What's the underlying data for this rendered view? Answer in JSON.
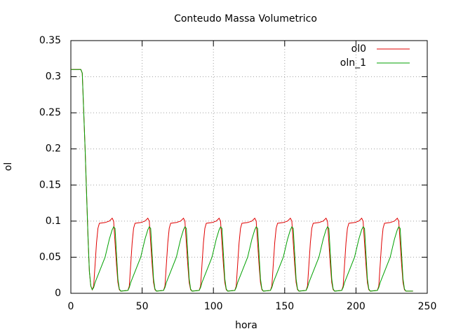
{
  "chart_data": {
    "type": "line",
    "title": "Conteudo Massa Volumetrico",
    "x_label": "hora",
    "y_label": "ol",
    "xlim": [
      0,
      250
    ],
    "xticks": [
      0,
      50,
      100,
      150,
      200,
      250
    ],
    "ylim": [
      0,
      0.35
    ],
    "yticks": [
      0,
      0.05,
      0.1,
      0.15,
      0.2,
      0.25,
      0.3,
      0.35
    ],
    "grid": true,
    "legend": "top-right",
    "x": [
      0,
      7,
      8,
      10,
      12,
      13,
      14,
      15,
      16,
      17,
      18,
      19,
      20,
      24,
      27,
      29,
      30,
      31,
      32,
      33,
      34,
      35,
      40,
      41,
      42,
      43,
      44,
      45,
      49,
      52,
      54,
      55,
      56,
      57,
      58,
      59,
      60,
      65,
      66,
      67,
      68,
      69,
      70,
      74,
      77,
      79,
      80,
      81,
      82,
      83,
      84,
      85,
      90,
      91,
      92,
      93,
      94,
      95,
      99,
      102,
      104,
      105,
      106,
      107,
      108,
      109,
      110,
      115,
      116,
      117,
      118,
      119,
      120,
      124,
      127,
      129,
      130,
      131,
      132,
      133,
      134,
      135,
      140,
      141,
      142,
      143,
      144,
      145,
      149,
      152,
      154,
      155,
      156,
      157,
      158,
      159,
      160,
      165,
      166,
      167,
      168,
      169,
      170,
      174,
      177,
      179,
      180,
      181,
      182,
      183,
      184,
      185,
      190,
      191,
      192,
      193,
      194,
      195,
      199,
      202,
      204,
      205,
      206,
      207,
      208,
      209,
      210,
      215,
      216,
      217,
      218,
      219,
      220,
      224,
      227,
      229,
      230,
      231,
      232,
      233,
      234,
      235,
      240
    ],
    "series": [
      {
        "name": "ol0",
        "color": "#e00000",
        "values": [
          0.31,
          0.31,
          0.305,
          0.2,
          0.08,
          0.03,
          0.01,
          0.005,
          0.01,
          0.04,
          0.07,
          0.09,
          0.097,
          0.098,
          0.1,
          0.104,
          0.1,
          0.07,
          0.04,
          0.015,
          0.005,
          0.003,
          0.004,
          0.01,
          0.04,
          0.07,
          0.09,
          0.097,
          0.098,
          0.1,
          0.104,
          0.1,
          0.07,
          0.04,
          0.015,
          0.005,
          0.003,
          0.004,
          0.01,
          0.04,
          0.07,
          0.09,
          0.097,
          0.098,
          0.1,
          0.104,
          0.1,
          0.07,
          0.04,
          0.015,
          0.005,
          0.003,
          0.004,
          0.01,
          0.04,
          0.07,
          0.09,
          0.097,
          0.098,
          0.1,
          0.104,
          0.1,
          0.07,
          0.04,
          0.015,
          0.005,
          0.003,
          0.004,
          0.01,
          0.04,
          0.07,
          0.09,
          0.097,
          0.098,
          0.1,
          0.104,
          0.1,
          0.07,
          0.04,
          0.015,
          0.005,
          0.003,
          0.004,
          0.01,
          0.04,
          0.07,
          0.09,
          0.097,
          0.098,
          0.1,
          0.104,
          0.1,
          0.07,
          0.04,
          0.015,
          0.005,
          0.003,
          0.004,
          0.01,
          0.04,
          0.07,
          0.09,
          0.097,
          0.098,
          0.1,
          0.104,
          0.1,
          0.07,
          0.04,
          0.015,
          0.005,
          0.003,
          0.004,
          0.01,
          0.04,
          0.07,
          0.09,
          0.097,
          0.098,
          0.1,
          0.104,
          0.1,
          0.07,
          0.04,
          0.015,
          0.005,
          0.003,
          0.004,
          0.01,
          0.04,
          0.07,
          0.09,
          0.097,
          0.098,
          0.1,
          0.104,
          0.1,
          0.07,
          0.04,
          0.015,
          0.005,
          0.003,
          0.003
        ]
      },
      {
        "name": "oln_1",
        "color": "#00a000",
        "values": [
          0.31,
          0.31,
          0.305,
          0.2,
          0.08,
          0.03,
          0.01,
          0.005,
          0.008,
          0.015,
          0.02,
          0.025,
          0.03,
          0.05,
          0.075,
          0.088,
          0.092,
          0.09,
          0.055,
          0.02,
          0.006,
          0.003,
          0.004,
          0.008,
          0.015,
          0.02,
          0.025,
          0.03,
          0.05,
          0.075,
          0.088,
          0.092,
          0.09,
          0.055,
          0.02,
          0.006,
          0.003,
          0.004,
          0.008,
          0.015,
          0.02,
          0.025,
          0.03,
          0.05,
          0.075,
          0.088,
          0.092,
          0.09,
          0.055,
          0.02,
          0.006,
          0.003,
          0.004,
          0.008,
          0.015,
          0.02,
          0.025,
          0.03,
          0.05,
          0.075,
          0.088,
          0.092,
          0.09,
          0.055,
          0.02,
          0.006,
          0.003,
          0.004,
          0.008,
          0.015,
          0.02,
          0.025,
          0.03,
          0.05,
          0.075,
          0.088,
          0.092,
          0.09,
          0.055,
          0.02,
          0.006,
          0.003,
          0.004,
          0.008,
          0.015,
          0.02,
          0.025,
          0.03,
          0.05,
          0.075,
          0.088,
          0.092,
          0.09,
          0.055,
          0.02,
          0.006,
          0.003,
          0.004,
          0.008,
          0.015,
          0.02,
          0.025,
          0.03,
          0.05,
          0.075,
          0.088,
          0.092,
          0.09,
          0.055,
          0.02,
          0.006,
          0.003,
          0.004,
          0.008,
          0.015,
          0.02,
          0.025,
          0.03,
          0.05,
          0.075,
          0.088,
          0.092,
          0.09,
          0.055,
          0.02,
          0.006,
          0.003,
          0.004,
          0.008,
          0.015,
          0.02,
          0.025,
          0.03,
          0.05,
          0.075,
          0.088,
          0.092,
          0.09,
          0.055,
          0.02,
          0.006,
          0.003,
          0.003
        ]
      }
    ]
  }
}
